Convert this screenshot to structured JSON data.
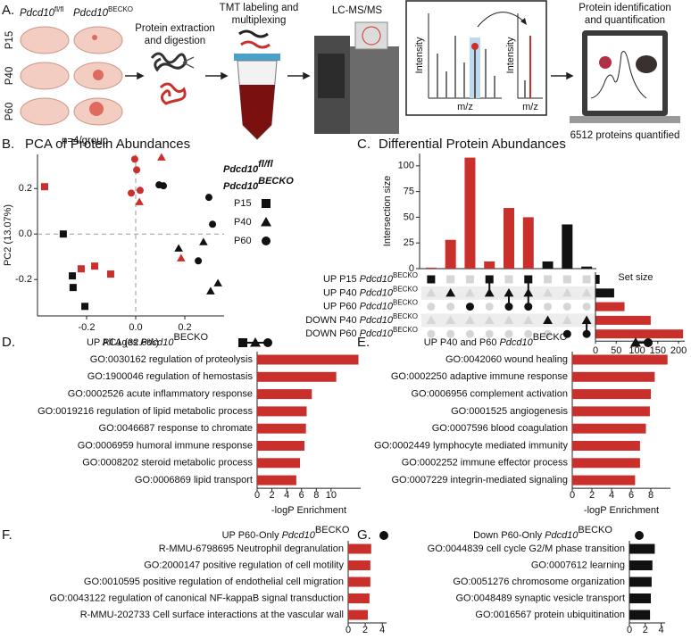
{
  "figure_a": {
    "label": "A.",
    "genotypes": [
      {
        "gene": "Pdcd10",
        "sup": "fl/fl"
      },
      {
        "gene": "Pdcd10",
        "sup": "BECKO"
      }
    ],
    "ages": [
      "P15",
      "P40",
      "P60"
    ],
    "n": "n=4/group",
    "step1": [
      "Protein extraction",
      "and digestion"
    ],
    "step2": [
      "TMT labeling and",
      "multiplexing"
    ],
    "step3": "LC-MS/MS",
    "spectrum_axes": [
      "Intensity",
      "m/z",
      "Intensity",
      "m/z"
    ],
    "step4": [
      "Protein identification",
      "and quantification"
    ],
    "result": "6512 proteins quantified"
  },
  "chart_data": [
    {
      "type": "scatter",
      "label": "B.",
      "title": "PCA of Protein Abundances",
      "xlabel": "PC1 (32.6%)",
      "ylabel": "PC2 (13.07%)",
      "xlim": [
        -0.4,
        0.36
      ],
      "ylim": [
        -0.36,
        0.35
      ],
      "xticks": [
        -0.2,
        {
          "value": 0,
          "label": "0.0"
        },
        0.2
      ],
      "yticks": [
        -0.2,
        {
          "value": 0,
          "label": "0.0"
        },
        0.2
      ],
      "zero_lines": true,
      "legend": {
        "colors": [
          {
            "gene": "Pdcd10",
            "sup": "fl/fl",
            "color": "#111111"
          },
          {
            "gene": "Pdcd10",
            "sup": "BECKO",
            "color": "#c9302c"
          }
        ],
        "shapes": [
          {
            "name": "P15",
            "shape": "square"
          },
          {
            "name": "P40",
            "shape": "triangle"
          },
          {
            "name": "P60",
            "shape": "circle"
          }
        ]
      },
      "series": [
        {
          "color": "#111111",
          "shape": "square",
          "x": [
            -0.295,
            -0.258,
            -0.255,
            -0.207
          ],
          "y": [
            0.0,
            -0.184,
            -0.235,
            -0.318
          ]
        },
        {
          "color": "#111111",
          "shape": "triangle",
          "x": [
            0.276,
            0.175,
            0.335,
            0.305
          ],
          "y": [
            -0.035,
            -0.063,
            -0.216,
            -0.251
          ]
        },
        {
          "color": "#111111",
          "shape": "circle",
          "x": [
            0.095,
            0.113,
            0.298,
            0.313,
            0.255
          ],
          "y": [
            0.216,
            0.212,
            0.161,
            0.043,
            -0.118
          ]
        },
        {
          "color": "#c9302c",
          "shape": "square",
          "x": [
            -0.371,
            -0.222,
            -0.167,
            -0.102
          ],
          "y": [
            0.208,
            -0.153,
            -0.141,
            -0.176
          ]
        },
        {
          "color": "#c9302c",
          "shape": "triangle",
          "x": [
            0.105,
            0.015,
            0.185
          ],
          "y": [
            0.337,
            0.141,
            -0.106
          ]
        },
        {
          "color": "#c9302c",
          "shape": "circle",
          "x": [
            -0.004,
            0.004,
            -0.018,
            0.018
          ],
          "y": [
            0.329,
            0.282,
            0.18,
            0.192
          ]
        }
      ]
    },
    {
      "type": "upset",
      "label": "C.",
      "title": "Differential Protein Abundances",
      "ylabel": "Intersection size",
      "set_label": "Set size",
      "ylim": [
        0,
        112
      ],
      "yticks": [
        0,
        25,
        50,
        75,
        100
      ],
      "set_xlim": [
        0,
        215
      ],
      "set_xticks": [
        0,
        50,
        100,
        150,
        200
      ],
      "sets": [
        {
          "text": "UP P15",
          "gene": "Pdcd10",
          "sup": "BECKO",
          "size": 10,
          "color": "#111111",
          "shape": "square"
        },
        {
          "text": "UP P40",
          "gene": "Pdcd10",
          "sup": "BECKO",
          "size": 45,
          "color": "#111111",
          "shape": "triangle"
        },
        {
          "text": "UP P60",
          "gene": "Pdcd10",
          "sup": "BECKO",
          "size": 70,
          "color": "#c9302c",
          "shape": "circle"
        },
        {
          "text": "DOWN P40",
          "gene": "Pdcd10",
          "sup": "BECKO",
          "size": 133,
          "color": "#c9302c",
          "shape": "triangle"
        },
        {
          "text": "DOWN P60",
          "gene": "Pdcd10",
          "sup": "BECKO",
          "size": 211,
          "color": "#c9302c",
          "shape": "circle"
        }
      ],
      "intersections": [
        {
          "sets": [
            0
          ],
          "value": 1,
          "color": "#c9302c"
        },
        {
          "sets": [
            1
          ],
          "value": 28,
          "color": "#c9302c"
        },
        {
          "sets": [
            2
          ],
          "value": 108,
          "color": "#c9302c"
        },
        {
          "sets": [
            0,
            1
          ],
          "value": 7,
          "color": "#c9302c"
        },
        {
          "sets": [
            1,
            2
          ],
          "value": 59,
          "color": "#c9302c"
        },
        {
          "sets": [
            0,
            1,
            2
          ],
          "value": 50,
          "color": "#c9302c"
        },
        {
          "sets": [
            3
          ],
          "value": 7,
          "color": "#111111"
        },
        {
          "sets": [
            4
          ],
          "value": 43,
          "color": "#111111"
        },
        {
          "sets": [
            3,
            4
          ],
          "value": 2,
          "color": "#111111"
        }
      ]
    },
    {
      "type": "barh",
      "label": "D.",
      "title": "UP All Ages",
      "title_gene": "Pdcd10",
      "title_sup": "BECKO",
      "icon": [
        "square",
        "triangle",
        "circle"
      ],
      "categories": [
        "GO:0030162 regulation of proteolysis",
        "GO:1900046 regulation of hemostasis",
        "GO:0002526 acute inflammatory response",
        "GO:0019216 regulation of lipid metabolic process",
        "GO:0046687 response to chromate",
        "GO:0006959 humoral immune response",
        "GO:0008202 steroid metabolic process",
        "GO:0006869 lipid transport"
      ],
      "values": [
        13.7,
        10.7,
        7.4,
        6.7,
        6.6,
        6.4,
        5.8,
        5.3
      ],
      "color": "#c9302c",
      "xlim": [
        0,
        14
      ],
      "xticks": [
        0,
        2,
        4,
        6,
        8,
        10
      ],
      "xlabel": "-logP Enrichment"
    },
    {
      "type": "barh",
      "label": "E.",
      "title": "UP P40 and P60",
      "title_gene": "Pdcd10",
      "title_sup": "BECKO",
      "icon": [
        "triangle",
        "circle"
      ],
      "categories": [
        "GO:0042060 wound healing",
        "GO:0002250 adaptive immune response",
        "GO:0006956 complement activation",
        "GO:0001525 angiogenesis",
        "GO:0007596 blood coagulation",
        "GO:0002449 lymphocyte mediated immunity",
        "GO:0002252 immune effector process",
        "GO:0007229 integrin-mediated signaling"
      ],
      "values": [
        9.7,
        8.4,
        8.0,
        7.9,
        7.5,
        6.9,
        6.9,
        6.4
      ],
      "color": "#c9302c",
      "xlim": [
        0,
        10
      ],
      "xticks": [
        0,
        2,
        4,
        6,
        8
      ],
      "xlabel": "-logP Enrichment"
    },
    {
      "type": "barh",
      "label": "F.",
      "title": "UP P60-Only",
      "title_gene": "Pdcd10",
      "title_sup": "BECKO",
      "icon": [
        "circle"
      ],
      "categories": [
        "R-MMU-6798695 Neutrophil degranulation",
        "GO:2000147 positive regulation of cell motility",
        "GO:0010595 positive regulation of endothelial cell migration",
        "GO:0043122 regulation of canonical NF-kappaB signal transduction",
        "R-MMU-202733 Cell surface interactions at the vascular wall"
      ],
      "values": [
        2.7,
        2.6,
        2.6,
        2.5,
        2.3
      ],
      "color": "#c9302c",
      "xlim": [
        0,
        4.5
      ],
      "xticks": [
        0,
        2,
        4
      ],
      "xlabel": "-logP Enrichment"
    },
    {
      "type": "barh",
      "label": "G.",
      "title": "Down P60-Only",
      "title_gene": "Pdcd10",
      "title_sup": "BECKO",
      "icon": [
        "circle"
      ],
      "categories": [
        "GO:0044839 cell cycle G2/M phase transition",
        "GO:0007612 learning",
        "GO:0051276 chromosome organization",
        "GO:0048489 synaptic vesicle transport",
        "GO:0016567 protein ubiquitination"
      ],
      "values": [
        3.2,
        2.9,
        2.8,
        2.7,
        2.6
      ],
      "color": "#111111",
      "xlim": [
        0,
        4.5
      ],
      "xticks": [
        0,
        2,
        4
      ],
      "xlabel": "-logP Enrichment"
    }
  ]
}
